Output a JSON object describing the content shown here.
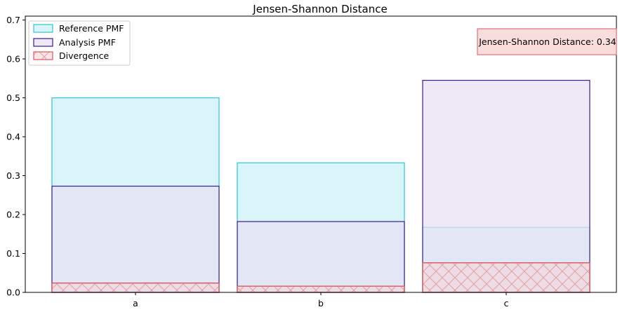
{
  "chart_data": {
    "type": "bar",
    "title": "Jensen-Shannon Distance",
    "xlabel": "",
    "ylabel": "",
    "categories": [
      "a",
      "b",
      "c"
    ],
    "ylim": [
      0,
      0.71
    ],
    "yticks": [
      "0.0",
      "0.1",
      "0.2",
      "0.3",
      "0.4",
      "0.5",
      "0.6",
      "0.7"
    ],
    "grid": false,
    "legend_position": "top-left",
    "series": [
      {
        "name": "Reference PMF",
        "values": [
          0.5,
          0.333,
          0.167
        ],
        "fill": "#d9f5f9",
        "stroke": "#2ec4d6"
      },
      {
        "name": "Analysis PMF",
        "values": [
          0.273,
          0.182,
          0.545
        ],
        "fill": "#e6e1f2",
        "stroke": "#3b1d8f",
        "fill_opacity": 0.72
      },
      {
        "name": "Divergence",
        "values": [
          0.024,
          0.016,
          0.076
        ],
        "fill": "#f3d6d8",
        "stroke": "#d9575b",
        "fill_opacity": 0.6,
        "hatch": "cross"
      }
    ],
    "annotation": "Jensen-Shannon Distance: 0.34",
    "annotation_position": "top-right",
    "annotation_colors": {
      "fill": "#f9dcdc",
      "stroke": "#d9575b"
    }
  }
}
